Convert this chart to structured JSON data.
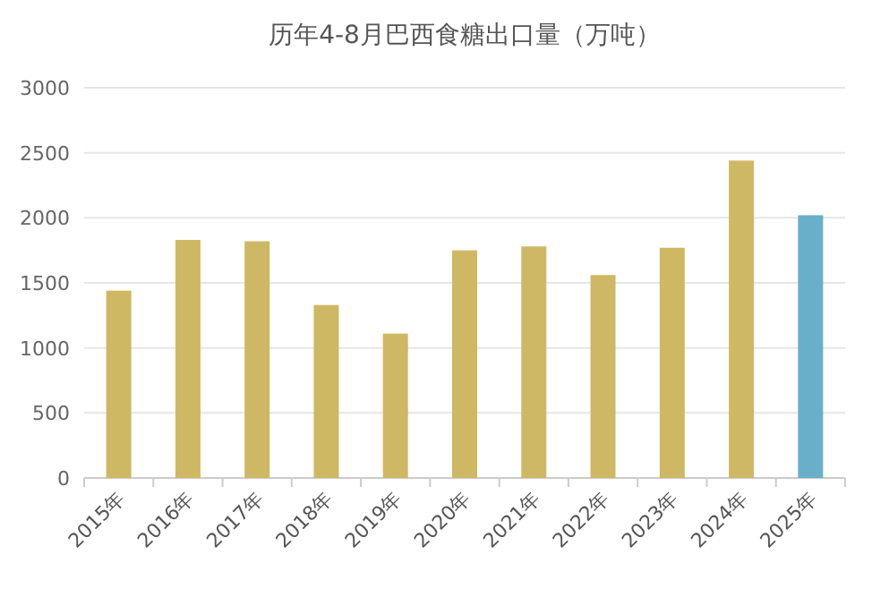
{
  "chart_data": {
    "type": "bar",
    "title": "历年4-8月巴西食糖出口量（万吨）",
    "categories": [
      "2015年",
      "2016年",
      "2017年",
      "2018年",
      "2019年",
      "2020年",
      "2021年",
      "2022年",
      "2023年",
      "2024年",
      "2025年"
    ],
    "values": [
      1440,
      1830,
      1820,
      1330,
      1110,
      1750,
      1780,
      1560,
      1770,
      2440,
      2020
    ],
    "colors": [
      "#cfb863",
      "#cfb863",
      "#cfb863",
      "#cfb863",
      "#cfb863",
      "#cfb863",
      "#cfb863",
      "#cfb863",
      "#cfb863",
      "#cfb863",
      "#69afc9"
    ],
    "ylim": [
      0,
      3000
    ],
    "yticks": [
      0,
      500,
      1000,
      1500,
      2000,
      2500,
      3000
    ],
    "grid": "y"
  }
}
